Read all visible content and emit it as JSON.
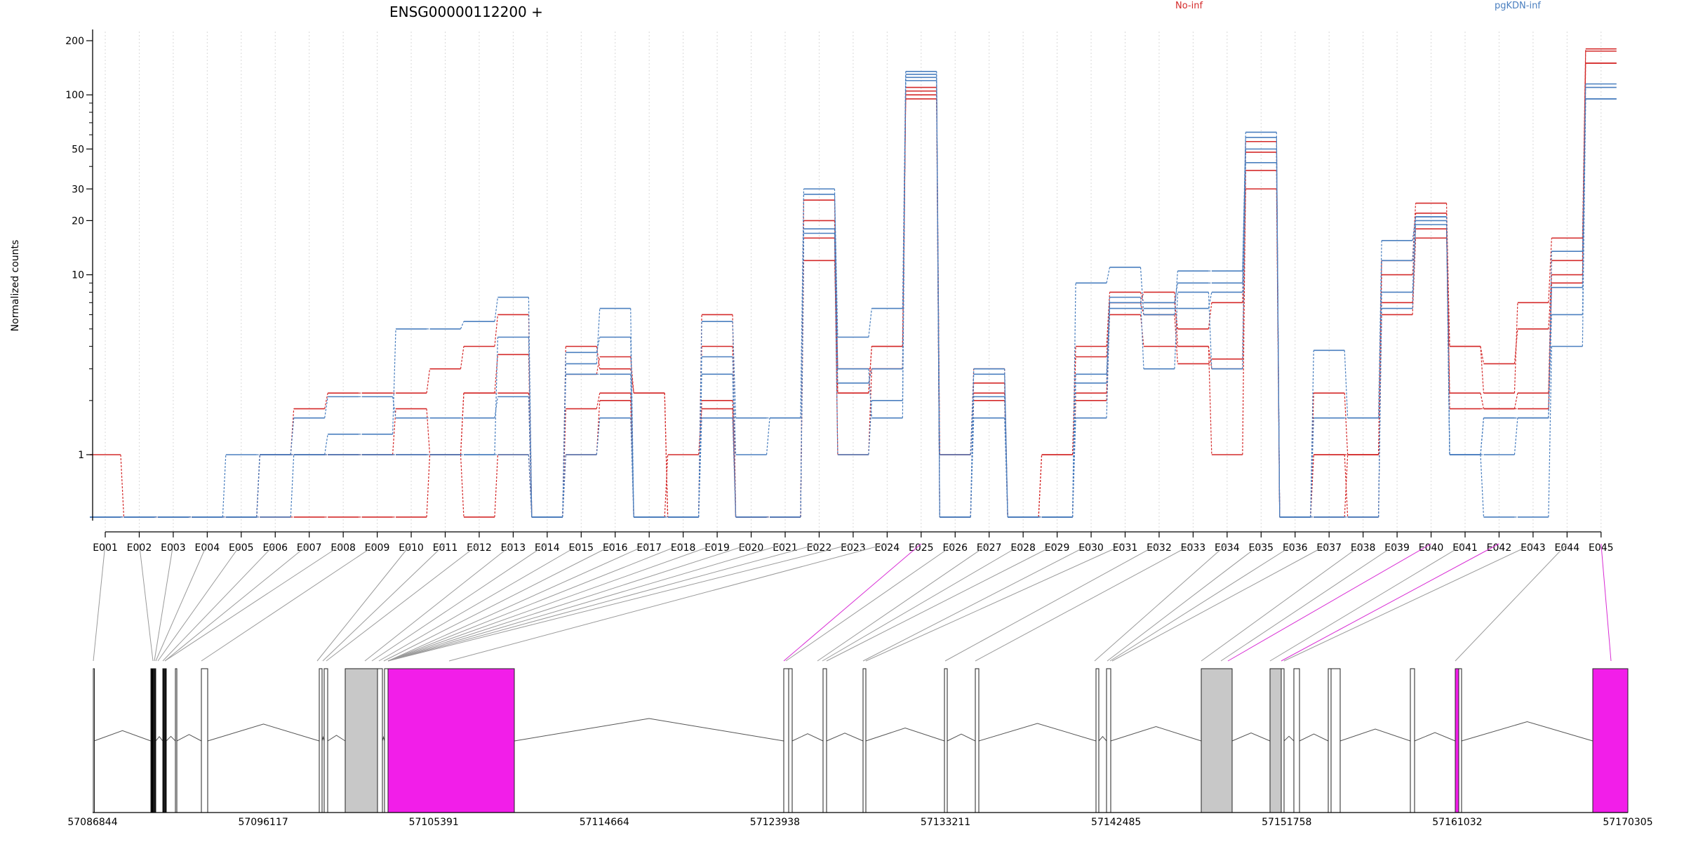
{
  "gene_title": "ENSG00000112200 +",
  "legend": [
    {
      "label": "No-inf",
      "color": "#d42a2a"
    },
    {
      "label": "pgKDN-inf",
      "color": "#4a7fbf"
    }
  ],
  "colors": {
    "no_inf": "#d42a2a",
    "pgkdn_inf": "#4a7fbf",
    "highlight_exon": "#f21ee9",
    "tested_exon": "#c8c8c8"
  },
  "chart_data": {
    "type": "line",
    "title": "ENSG00000112200 +",
    "ylabel": "Normalized counts",
    "yscale": "log",
    "ylim": [
      0.45,
      210
    ],
    "yticks": [
      1,
      10,
      20,
      30,
      50,
      100,
      200
    ],
    "grid": "vertical dotted",
    "legend_position": "top",
    "categories": [
      "E001",
      "E002",
      "E003",
      "E004",
      "E005",
      "E006",
      "E007",
      "E008",
      "E009",
      "E010",
      "E011",
      "E012",
      "E013",
      "E014",
      "E015",
      "E016",
      "E017",
      "E018",
      "E019",
      "E020",
      "E021",
      "E022",
      "E023",
      "E024",
      "E025",
      "E026",
      "E027",
      "E028",
      "E029",
      "E030",
      "E031",
      "E032",
      "E033",
      "E034",
      "E035",
      "E036",
      "E037",
      "E038",
      "E039",
      "E040",
      "E041",
      "E042",
      "E043",
      "E044",
      "E045"
    ],
    "series": [
      {
        "group": "No-inf",
        "values": [
          1,
          0.45,
          0.45,
          0.45,
          0.45,
          1,
          1.8,
          2.2,
          2.2,
          2.2,
          3,
          4,
          6,
          0.45,
          4,
          3,
          2.2,
          0.45,
          6,
          0.45,
          0.45,
          20,
          3,
          3,
          110,
          1,
          3,
          0.45,
          1,
          4,
          8,
          7,
          5,
          7,
          55,
          0.45,
          2.2,
          1,
          12,
          25,
          4,
          2.2,
          7,
          16,
          180
        ]
      },
      {
        "group": "No-inf",
        "values": [
          0.45,
          0.45,
          0.45,
          0.45,
          0.45,
          1,
          1,
          1,
          1,
          1.8,
          1,
          2.2,
          3.6,
          0.45,
          2.8,
          3.5,
          2.2,
          0.45,
          4,
          0.45,
          0.45,
          26,
          2.2,
          4,
          105,
          1,
          2.5,
          0.45,
          1,
          3.5,
          7,
          8,
          4,
          3,
          48,
          0.45,
          1,
          1,
          10,
          18,
          2.2,
          1.8,
          2.2,
          12,
          175
        ]
      },
      {
        "group": "No-inf",
        "values": [
          0.45,
          0.45,
          0.45,
          0.45,
          0.45,
          1,
          1,
          1,
          1,
          1,
          1,
          2.2,
          2.2,
          0.45,
          1.8,
          2.2,
          0.45,
          0.45,
          2,
          0.45,
          0.45,
          16,
          1,
          3,
          100,
          0.45,
          2.2,
          0.45,
          0.45,
          2.2,
          6,
          4,
          4,
          1,
          38,
          0.45,
          1,
          0.45,
          7,
          22,
          1.8,
          1.8,
          1.8,
          9,
          150
        ]
      },
      {
        "group": "No-inf",
        "values": [
          0.45,
          0.45,
          0.45,
          0.45,
          0.45,
          0.45,
          0.45,
          0.45,
          0.45,
          0.45,
          1,
          0.45,
          1,
          0.45,
          1,
          2,
          0.45,
          1,
          1.8,
          0.45,
          0.45,
          12,
          2.2,
          4,
          95,
          0.45,
          2,
          0.45,
          0.45,
          2,
          7,
          6,
          3.2,
          3.4,
          30,
          0.45,
          0.45,
          1,
          6,
          16,
          4,
          3.2,
          5,
          10,
          150
        ]
      },
      {
        "group": "pgKDN-inf",
        "values": [
          0.45,
          0.45,
          0.45,
          0.45,
          1,
          1,
          1,
          1.3,
          1.3,
          5,
          5,
          5.5,
          7.5,
          0.45,
          3.2,
          6.5,
          0.45,
          0.45,
          5.5,
          1.6,
          1.6,
          30,
          4.5,
          6.5,
          135,
          0.45,
          3,
          0.45,
          0.45,
          9,
          11,
          6,
          10.5,
          10.5,
          62,
          0.45,
          3.8,
          1.6,
          15.5,
          21,
          1,
          1.6,
          1.6,
          13.5,
          115
        ]
      },
      {
        "group": "pgKDN-inf",
        "values": [
          0.45,
          0.45,
          0.45,
          0.45,
          0.45,
          1,
          1.6,
          2.1,
          2.1,
          1.6,
          1.6,
          1.6,
          2.1,
          0.45,
          3.7,
          4.5,
          0.45,
          0.45,
          3.5,
          1,
          1.6,
          28,
          3,
          1.6,
          130,
          1,
          2.8,
          0.45,
          0.45,
          2.8,
          7,
          7,
          9,
          9,
          58,
          0.45,
          1.6,
          1.6,
          12,
          20,
          1,
          1,
          1.6,
          8.5,
          110
        ]
      },
      {
        "group": "pgKDN-inf",
        "values": [
          0.45,
          0.45,
          0.45,
          0.45,
          0.45,
          1,
          1,
          1,
          1,
          1,
          1,
          1,
          4.5,
          0.45,
          2.8,
          2.8,
          0.45,
          0.45,
          2.8,
          0.45,
          0.45,
          18,
          2.5,
          3,
          125,
          0.45,
          2.1,
          0.45,
          0.45,
          2.5,
          7.5,
          3,
          8,
          3,
          50,
          0.45,
          0.45,
          0.45,
          8,
          21,
          1,
          1.6,
          1.6,
          6,
          95
        ]
      },
      {
        "group": "pgKDN-inf",
        "values": [
          0.45,
          0.45,
          0.45,
          0.45,
          0.45,
          0.45,
          1,
          1,
          1,
          1,
          1,
          1,
          1,
          0.45,
          1,
          1.6,
          0.45,
          0.45,
          1.6,
          0.45,
          0.45,
          17,
          1,
          2,
          120,
          0.45,
          1.6,
          0.45,
          0.45,
          1.6,
          6.5,
          6.5,
          6.5,
          8,
          42,
          0.45,
          0.45,
          0.45,
          6.5,
          19,
          1,
          0.45,
          0.45,
          4,
          95
        ]
      }
    ]
  },
  "gene_model": {
    "coordinate_labels": [
      "57086844",
      "57096117",
      "57105391",
      "57114664",
      "57123938",
      "57133211",
      "57142485",
      "57151758",
      "57161032",
      "57170305"
    ],
    "highlighted_exons": [
      "E025",
      "E040",
      "E042",
      "E045"
    ]
  }
}
